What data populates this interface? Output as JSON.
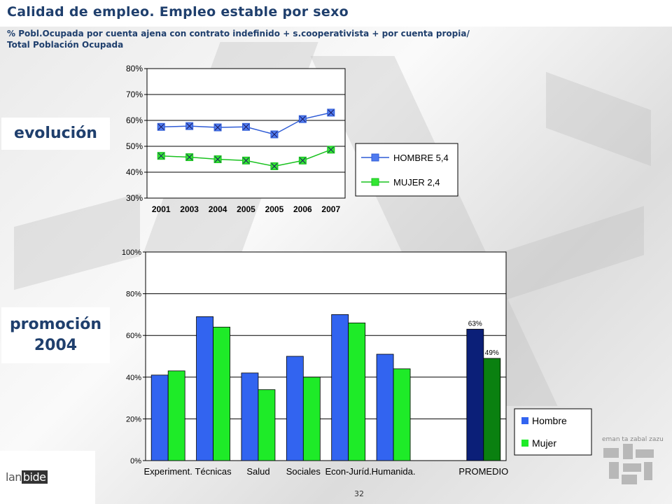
{
  "slide": {
    "title": "Calidad de empleo. Empleo estable por sexo",
    "subtitle_line1": "% Pobl.Ocupada por cuenta ajena con contrato indefinido + s.cooperativista + por cuenta propia/",
    "subtitle_line2": "Total Población Ocupada",
    "label_evolucion": "evolución",
    "label_promocion": "promoción",
    "label_year": "2004",
    "page_number": "32",
    "logo_text_a": "lan",
    "logo_text_b": "bide",
    "emblem_text": "eman ta zabal zazu"
  },
  "chart_data": [
    {
      "type": "line",
      "categories": [
        "2001",
        "2003",
        "2004",
        "2005",
        "2005",
        "2006",
        "2007"
      ],
      "ylim": [
        30,
        80
      ],
      "yticks": [
        "30%",
        "40%",
        "50%",
        "60%",
        "70%",
        "80%"
      ],
      "grid": true,
      "legend_position": "right",
      "colors": {
        "hombre": "#2e5bd6",
        "mujer": "#19c21f",
        "hombre_marker": "#4f7bf0",
        "mujer_marker": "#33e633"
      },
      "series": [
        {
          "name": "HOMBRE 5,4",
          "values": [
            57.5,
            57.8,
            57.3,
            57.5,
            54.6,
            60.5,
            63.0
          ]
        },
        {
          "name": "MUJER 2,4",
          "values": [
            46.3,
            45.8,
            45.0,
            44.5,
            42.3,
            44.5,
            48.7
          ]
        }
      ]
    },
    {
      "type": "bar",
      "categories": [
        "Experiment.",
        "Técnicas",
        "Salud",
        "Sociales",
        "Econ-Juríd.",
        "Humanida.",
        "PROMEDIO"
      ],
      "ylim": [
        0,
        100
      ],
      "yticks": [
        "0%",
        "20%",
        "40%",
        "60%",
        "80%",
        "100%"
      ],
      "grid": true,
      "legend_position": "bottom-right",
      "colors": {
        "hombre": "#3264f0",
        "mujer": "#1eeb28",
        "hombre_avg": "#0b1f78",
        "mujer_avg": "#0a8010"
      },
      "series": [
        {
          "name": "Hombre",
          "values": [
            41,
            69,
            42,
            50,
            70,
            51,
            63
          ]
        },
        {
          "name": "Mujer",
          "values": [
            43,
            64,
            34,
            40,
            66,
            44,
            49
          ]
        }
      ],
      "data_labels": [
        "63%",
        "49%"
      ]
    }
  ]
}
